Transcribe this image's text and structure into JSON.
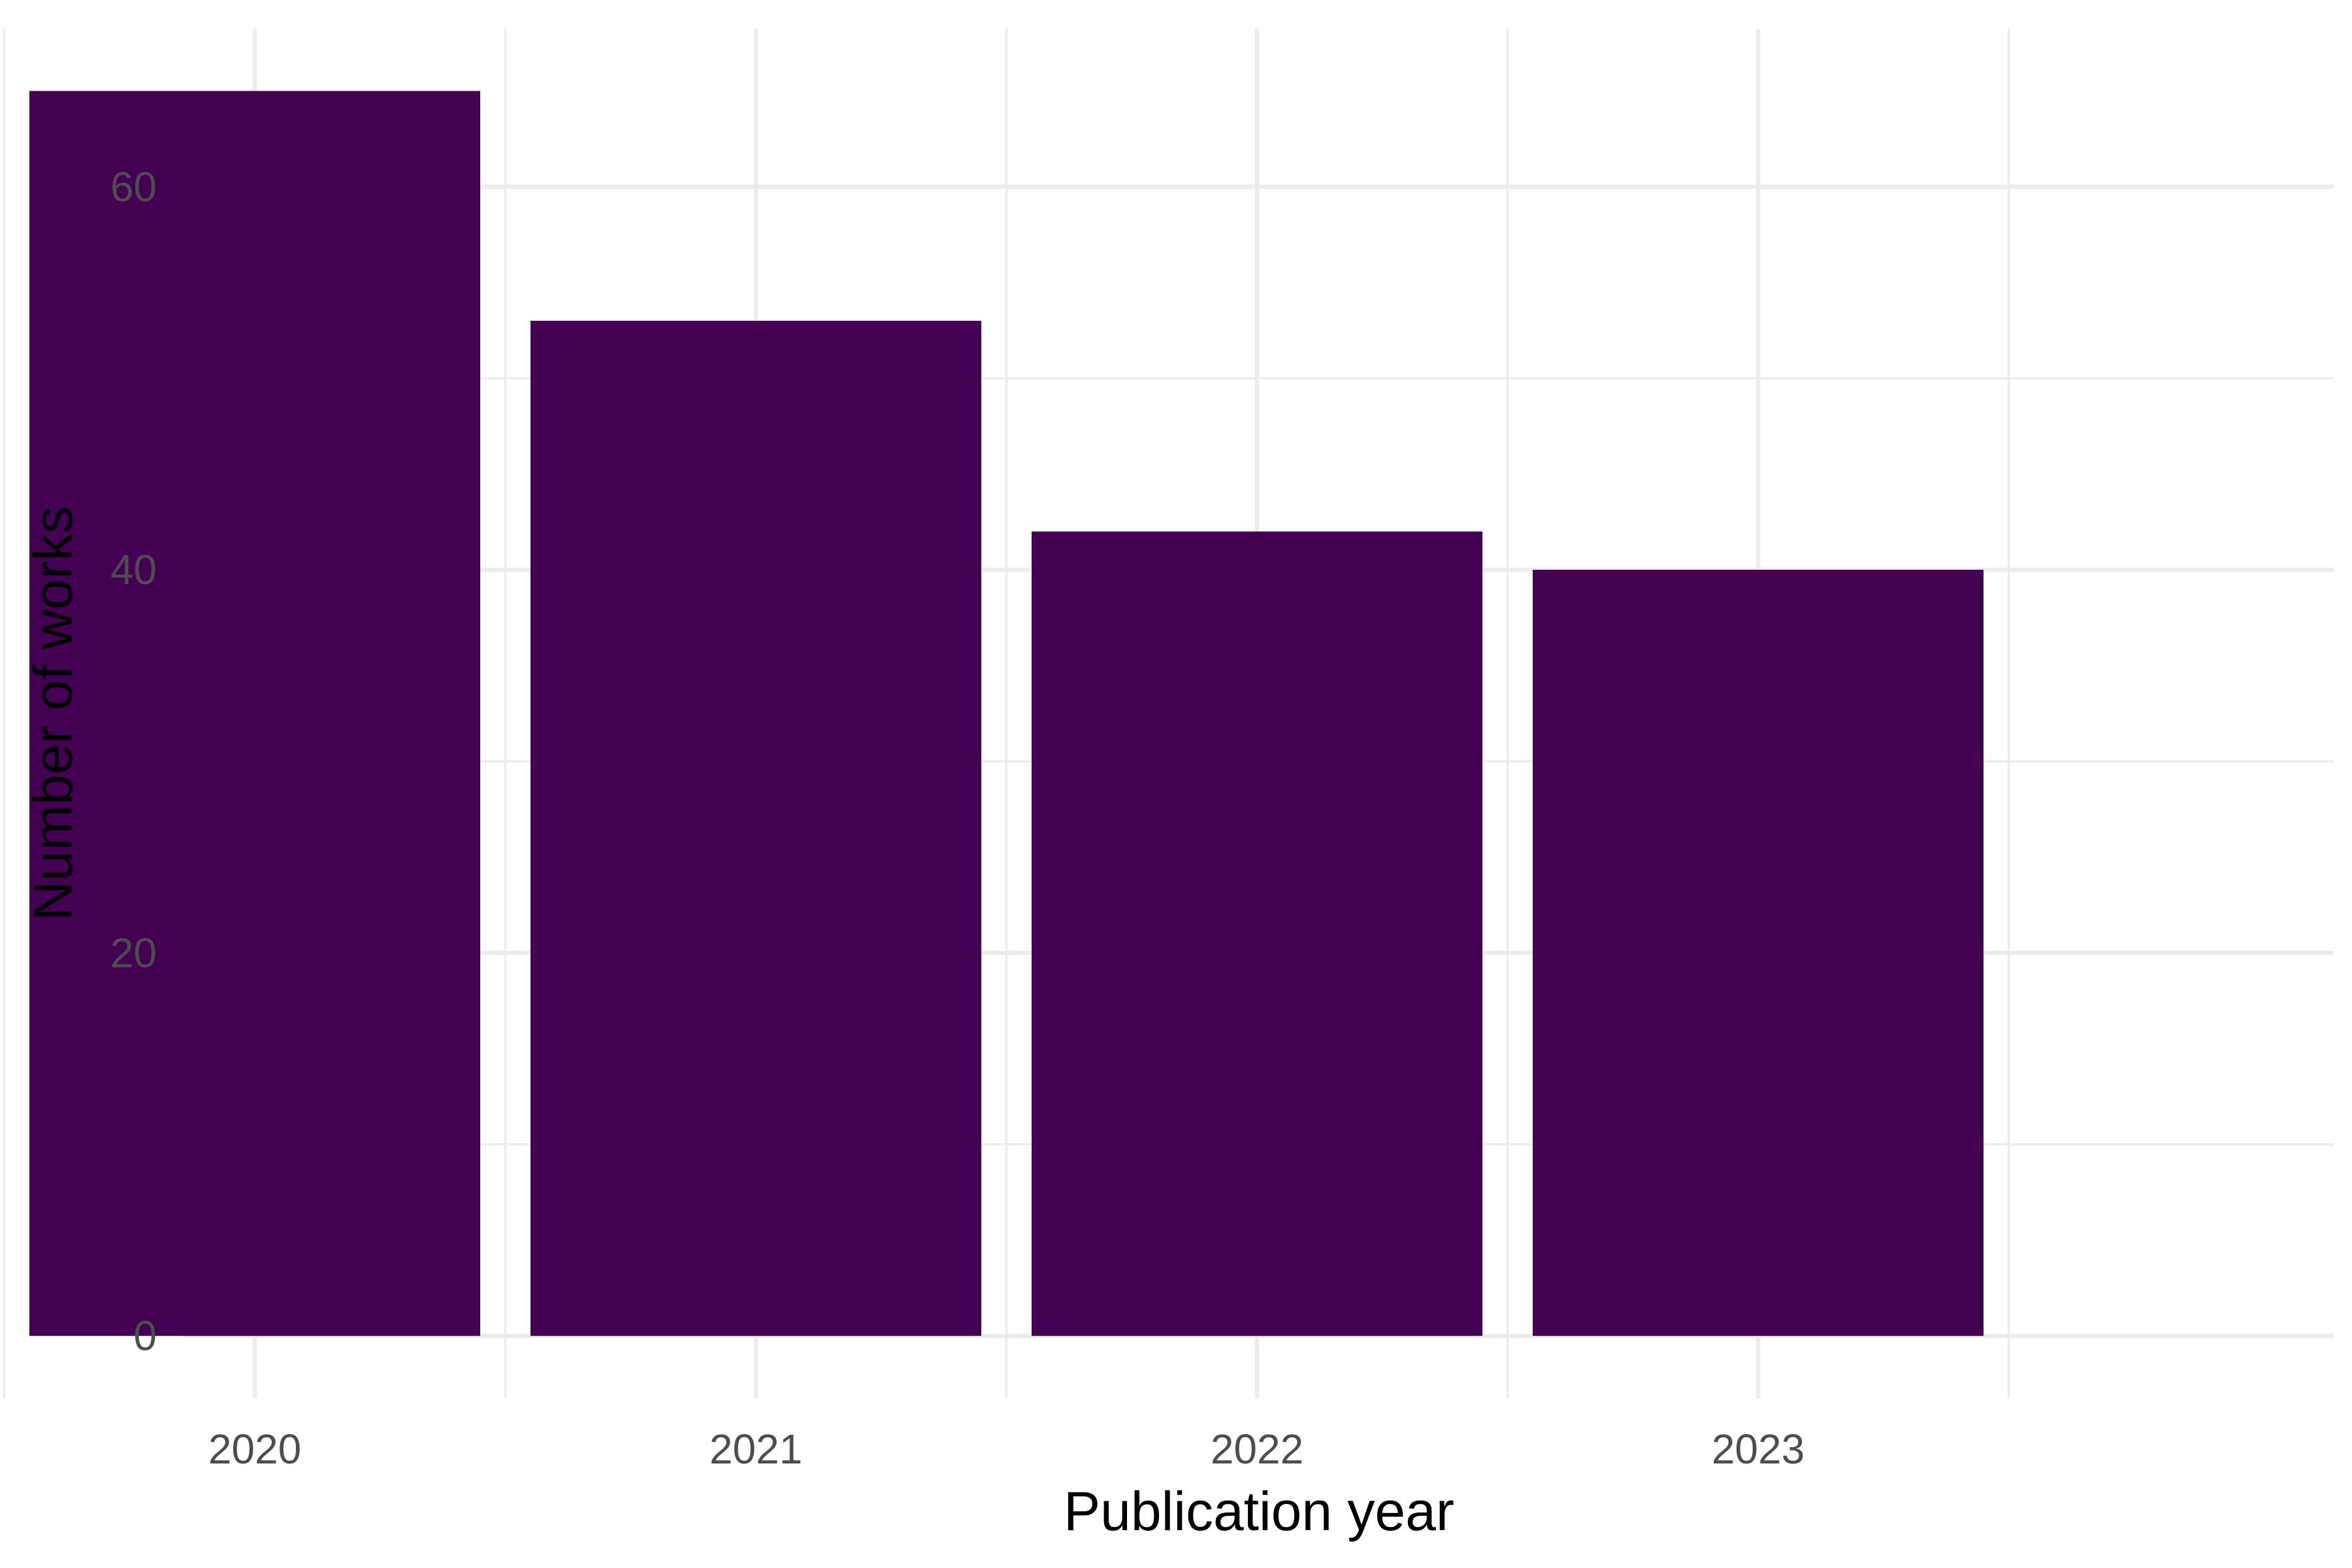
{
  "chart_data": {
    "type": "bar",
    "title": "",
    "xlabel": "Publication year",
    "ylabel": "Number of works",
    "categories": [
      "2020",
      "2021",
      "2022",
      "2023"
    ],
    "values": [
      65,
      53,
      42,
      40
    ],
    "ylim": [
      -3.25,
      68.25
    ],
    "yticks": [
      0,
      20,
      40,
      60
    ],
    "ytick_labels": [
      "0",
      "20",
      "40",
      "60"
    ],
    "y_minor_ticks": [
      10,
      30,
      50
    ],
    "grid": true,
    "legend": "none",
    "bar_color": "#440154",
    "grid_color": "#ebebeb",
    "tick_label_color": "#4d4d4d"
  }
}
